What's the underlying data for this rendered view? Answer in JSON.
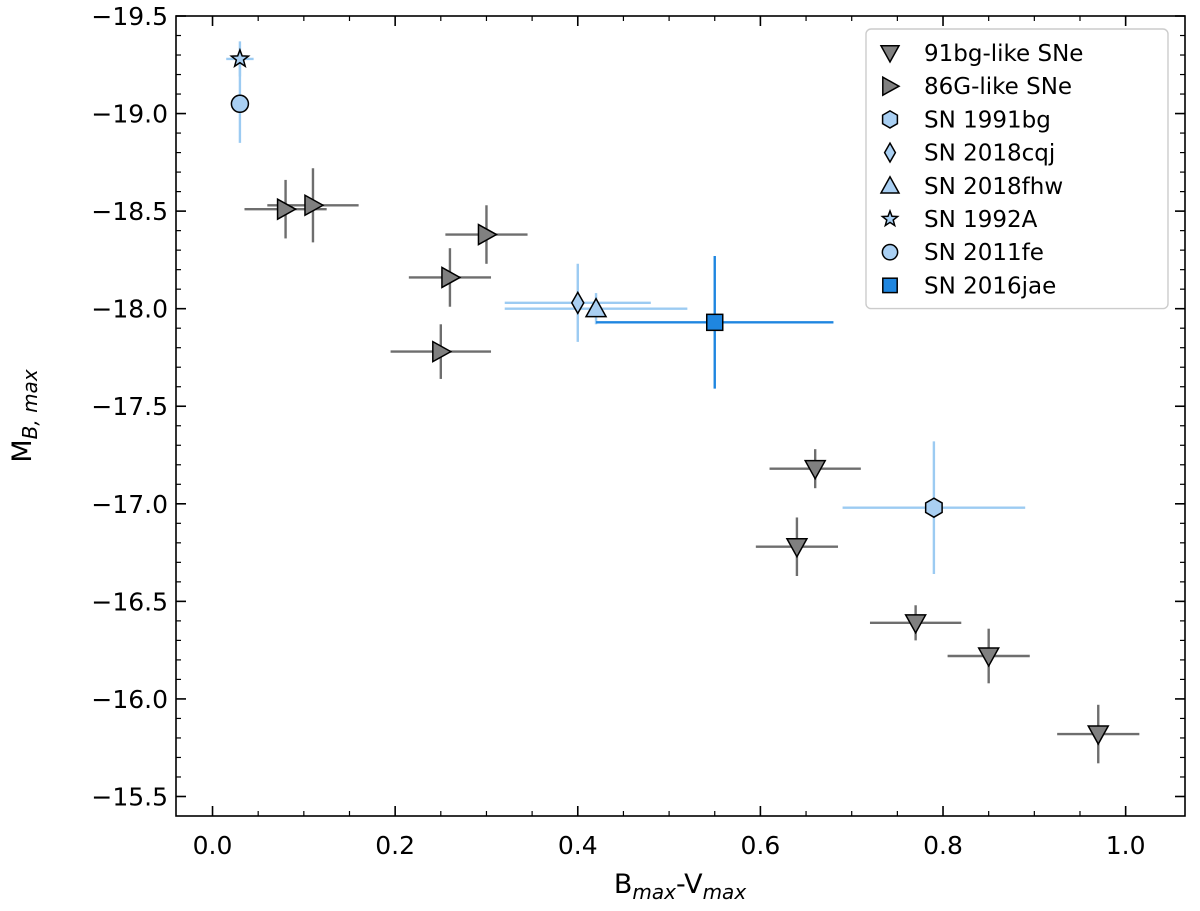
{
  "chart_data": {
    "type": "scatter",
    "x_axis": {
      "label_main": "B",
      "label_sub1": "max",
      "label_mid": "-V",
      "label_sub2": "max",
      "range": [
        -0.04,
        1.065
      ],
      "ticks": [
        "0.0",
        "0.2",
        "0.4",
        "0.6",
        "0.8",
        "1.0"
      ],
      "tick_values": [
        0.0,
        0.2,
        0.4,
        0.6,
        0.8,
        1.0
      ]
    },
    "y_axis": {
      "label_main": "M",
      "label_sub": "B, max",
      "range": [
        -19.5,
        -15.4
      ],
      "inverted": true,
      "ticks": [
        "−19.5",
        "−19.0",
        "−18.5",
        "−18.0",
        "−17.5",
        "−17.0",
        "−16.5",
        "−16.0",
        "−15.5"
      ],
      "tick_values": [
        -19.5,
        -19.0,
        -18.5,
        -18.0,
        -17.5,
        -17.0,
        -16.5,
        -16.0,
        -15.5
      ]
    },
    "legend_position": "top-right",
    "colors": {
      "gray_fill": "#808080",
      "gray_err": "#6e6e6e",
      "light_blue": "#a9cff2",
      "light_blue_err": "#9ccbf2",
      "blue": "#1f86e0",
      "blue_err": "#1f86e0",
      "edge": "#000000"
    },
    "series": [
      {
        "name": "91bg-like SNe",
        "marker": "triangle-down",
        "style": "gray",
        "points": [
          {
            "x": 0.66,
            "y": -17.18,
            "xerr": 0.05,
            "yerr": 0.1
          },
          {
            "x": 0.64,
            "y": -16.78,
            "xerr": 0.045,
            "yerr": 0.15
          },
          {
            "x": 0.77,
            "y": -16.39,
            "xerr": 0.05,
            "yerr": 0.09
          },
          {
            "x": 0.85,
            "y": -16.22,
            "xerr": 0.045,
            "yerr": 0.14
          },
          {
            "x": 0.97,
            "y": -15.82,
            "xerr": 0.045,
            "yerr": 0.15
          }
        ]
      },
      {
        "name": "86G-like SNe",
        "marker": "triangle-right",
        "style": "gray",
        "points": [
          {
            "x": 0.08,
            "y": -18.51,
            "xerr": 0.045,
            "yerr": 0.15
          },
          {
            "x": 0.11,
            "y": -18.53,
            "xerr": 0.05,
            "yerr": 0.19
          },
          {
            "x": 0.3,
            "y": -18.38,
            "xerr": 0.045,
            "yerr": 0.15
          },
          {
            "x": 0.26,
            "y": -18.16,
            "xerr": 0.045,
            "yerr": 0.15
          },
          {
            "x": 0.25,
            "y": -17.78,
            "xerr": 0.055,
            "yerr": 0.14
          }
        ]
      },
      {
        "name": "SN 1991bg",
        "marker": "hexagon",
        "style": "lightblue",
        "points": [
          {
            "x": 0.79,
            "y": -16.98,
            "xerr": 0.1,
            "yerr": 0.34
          }
        ]
      },
      {
        "name": "SN 2018cqj",
        "marker": "diamond",
        "style": "lightblue",
        "points": [
          {
            "x": 0.4,
            "y": -18.03,
            "xerr": 0.08,
            "yerr": 0.2
          }
        ]
      },
      {
        "name": "SN 2018fhw",
        "marker": "triangle-up",
        "style": "lightblue",
        "points": [
          {
            "x": 0.42,
            "y": -18.0,
            "xerr": 0.1,
            "yerr": 0.08
          }
        ]
      },
      {
        "name": "SN 1992A",
        "marker": "star",
        "style": "lightblue",
        "points": [
          {
            "x": 0.03,
            "y": -19.28,
            "xerr": 0.015,
            "yerr": 0.09
          }
        ]
      },
      {
        "name": "SN 2011fe",
        "marker": "circle",
        "style": "lightblue",
        "points": [
          {
            "x": 0.03,
            "y": -19.05,
            "xerr": 0.0,
            "yerr": 0.2
          }
        ]
      },
      {
        "name": "SN 2016jae",
        "marker": "square",
        "style": "blue",
        "points": [
          {
            "x": 0.55,
            "y": -17.93,
            "xerr": 0.13,
            "yerr": 0.34
          }
        ]
      }
    ]
  }
}
